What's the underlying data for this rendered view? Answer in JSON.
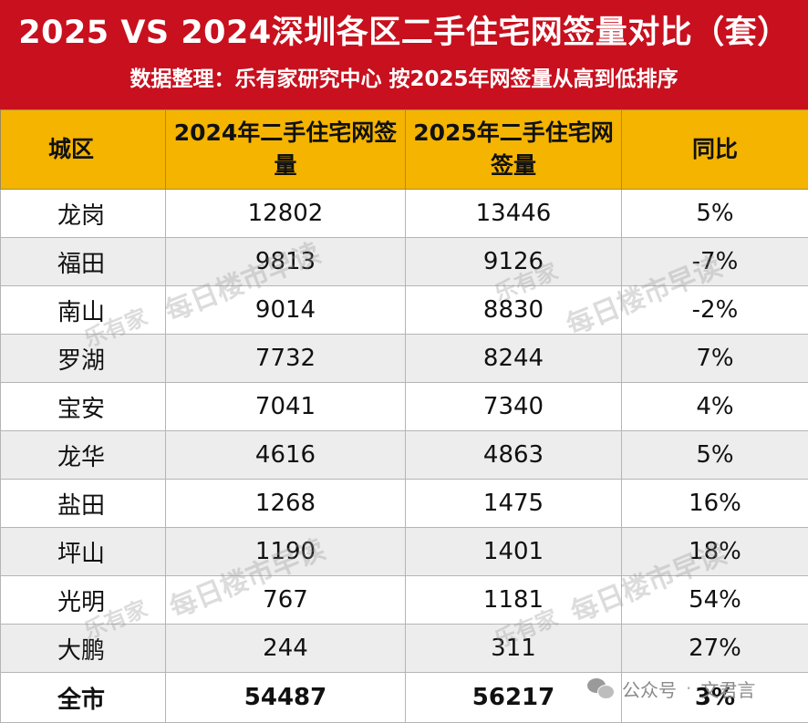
{
  "header": {
    "title": "2025 VS 2024深圳各区二手住宅网签量对比（套）",
    "subtitle": "数据整理：乐有家研究中心  按2025年网签量从高到低排序"
  },
  "table": {
    "columns": [
      "城区",
      "2024年二手住宅网签量",
      "2025年二手住宅网签量",
      "同比"
    ],
    "rows": [
      {
        "district": "龙岗",
        "y2024": "12802",
        "y2025": "13446",
        "yoy": "5%"
      },
      {
        "district": "福田",
        "y2024": "9813",
        "y2025": "9126",
        "yoy": "-7%"
      },
      {
        "district": "南山",
        "y2024": "9014",
        "y2025": "8830",
        "yoy": "-2%"
      },
      {
        "district": "罗湖",
        "y2024": "7732",
        "y2025": "8244",
        "yoy": "7%"
      },
      {
        "district": "宝安",
        "y2024": "7041",
        "y2025": "7340",
        "yoy": "4%"
      },
      {
        "district": "龙华",
        "y2024": "4616",
        "y2025": "4863",
        "yoy": "5%"
      },
      {
        "district": "盐田",
        "y2024": "1268",
        "y2025": "1475",
        "yoy": "16%"
      },
      {
        "district": "坪山",
        "y2024": "1190",
        "y2025": "1401",
        "yoy": "18%"
      },
      {
        "district": "光明",
        "y2024": "767",
        "y2025": "1181",
        "yoy": "54%"
      },
      {
        "district": "大鹏",
        "y2024": "244",
        "y2025": "311",
        "yoy": "27%"
      }
    ],
    "total": {
      "district": "全市",
      "y2024": "54487",
      "y2025": "56217",
      "yoy": "3%"
    }
  },
  "watermark": {
    "brand": "乐有家",
    "text": "每日楼市早读"
  },
  "footer": {
    "platform": "公众号",
    "author": "文君言",
    "icon": "wechat-icon"
  },
  "colors": {
    "header_bg": "#c8101e",
    "table_header_bg": "#f4b400",
    "alt_row_bg": "#ededed"
  }
}
